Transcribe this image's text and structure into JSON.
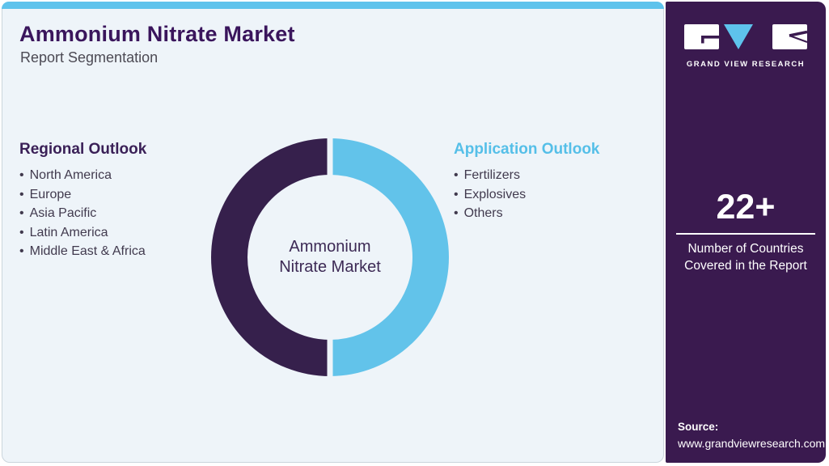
{
  "header": {
    "title": "Ammonium Nitrate Market",
    "subtitle": "Report Segmentation"
  },
  "segments": {
    "regional": {
      "heading": "Regional Outlook",
      "items": [
        "North America",
        "Europe",
        "Asia Pacific",
        "Latin America",
        "Middle East & Africa"
      ]
    },
    "application": {
      "heading": "Application Outlook",
      "items": [
        "Fertilizers",
        "Explosives",
        "Others"
      ]
    }
  },
  "donut_center_label": [
    "Ammonium",
    "Nitrate Market"
  ],
  "chart_data": {
    "type": "pie",
    "subtype": "donut",
    "title": "Ammonium Nitrate Market",
    "categories": [
      "Regional Outlook",
      "Application Outlook"
    ],
    "values": [
      50,
      50
    ],
    "colors": [
      "#36204C",
      "#62C3EA"
    ],
    "center_label": "Ammonium Nitrate Market",
    "legend_position": "none"
  },
  "brand_panel": {
    "logo": {
      "wordmark": "GRAND VIEW RESEARCH"
    },
    "stat": {
      "value": "22+",
      "caption": [
        "Number of Countries",
        "Covered in the Report"
      ]
    },
    "source": {
      "label": "Source:",
      "url": "www.grandviewresearch.com"
    }
  },
  "colors": {
    "accent_blue": "#5EC3EC",
    "panel_purple": "#3A1A4F",
    "title_purple": "#3A155C",
    "donut_dark": "#36204C",
    "donut_blue": "#62C3EA",
    "card_bg": "#EEF4F9"
  }
}
